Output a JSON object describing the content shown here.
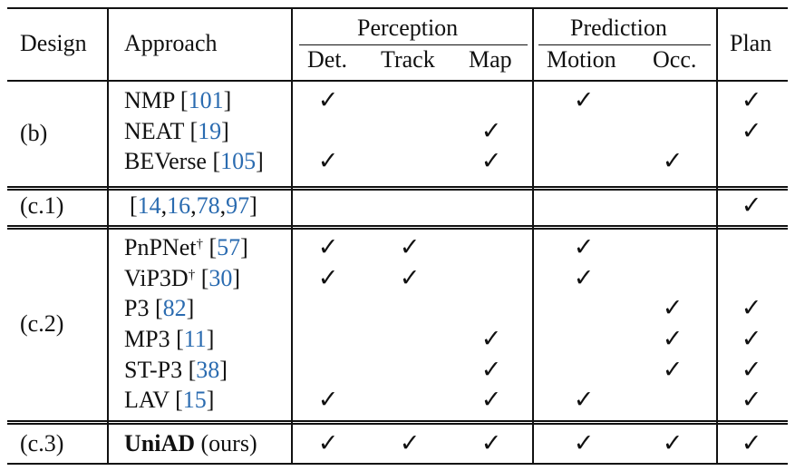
{
  "header": {
    "design": "Design",
    "approach": "Approach",
    "perception": "Perception",
    "prediction": "Prediction",
    "plan": "Plan",
    "det": "Det.",
    "track": "Track",
    "map": "Map",
    "motion": "Motion",
    "occ": "Occ."
  },
  "check_glyph": "✓",
  "groups": {
    "b": "(b)",
    "c1": "(c.1)",
    "c2": "(c.2)",
    "c3": "(c.3)"
  },
  "rows": {
    "nmp": {
      "name": "NMP",
      "ref": "101"
    },
    "neat": {
      "name": "NEAT",
      "ref": "19"
    },
    "beverse": {
      "name": "BEVerse",
      "ref": "105"
    },
    "c1refs": {
      "open": "[",
      "r1": "14",
      "r2": "16",
      "r3": "78",
      "r4": "97",
      "close": "]"
    },
    "pnpnet": {
      "name": "PnPNet",
      "dagger": "†",
      "ref": "57"
    },
    "vip3d": {
      "name": "ViP3D",
      "dagger": "†",
      "ref": "30"
    },
    "p3": {
      "name": "P3",
      "ref": "82"
    },
    "mp3": {
      "name": "MP3",
      "ref": "11"
    },
    "stp3": {
      "name": "ST-P3",
      "ref": "38"
    },
    "lav": {
      "name": "LAV",
      "ref": "15"
    },
    "uniad": {
      "name": "UniAD",
      "suffix": "(ours)"
    }
  }
}
